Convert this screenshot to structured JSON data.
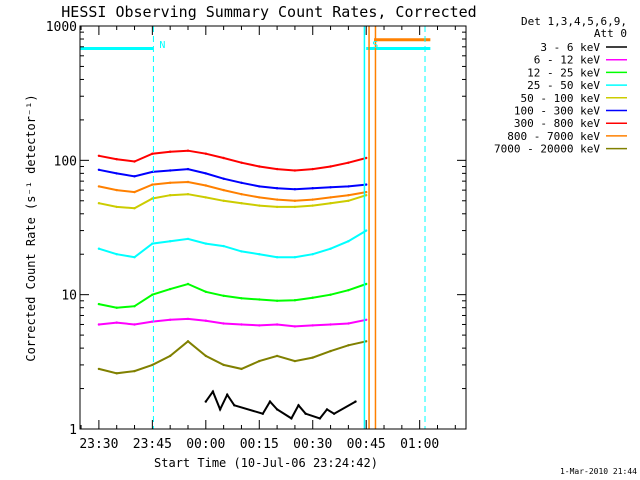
{
  "chart_data": {
    "type": "line",
    "title": "HESSI Observing Summary Count Rates, Corrected",
    "xlabel": "Start Time (10-Jul-06 23:24:42)",
    "ylabel": "Corrected Count Rate (s⁻¹ detector⁻¹)",
    "yscale": "log",
    "ylim": [
      1,
      1000
    ],
    "xlim_minutes": [
      -5.3,
      103.0
    ],
    "y_ticks": [
      {
        "value": 1,
        "label": "1"
      },
      {
        "value": 10,
        "label": "10"
      },
      {
        "value": 100,
        "label": "100"
      },
      {
        "value": 1000,
        "label": "1000"
      }
    ],
    "x_ticks": [
      {
        "value": 0,
        "label": "23:30"
      },
      {
        "value": 15,
        "label": "23:45"
      },
      {
        "value": 30,
        "label": "00:00"
      },
      {
        "value": 45,
        "label": "00:15"
      },
      {
        "value": 60,
        "label": "00:30"
      },
      {
        "value": 75,
        "label": "00:45"
      },
      {
        "value": 90,
        "label": "01:00"
      }
    ],
    "legend_header": [
      "Det 1,3,4,5,6,9,",
      "Att 0"
    ],
    "legend_position": "right",
    "series": [
      {
        "name": "3 - 6 keV",
        "color": "#000000",
        "x": [
          30,
          32,
          34,
          36,
          38,
          46,
          48,
          50,
          54,
          56,
          58,
          62,
          64,
          66,
          72
        ],
        "y": [
          1.6,
          1.9,
          1.4,
          1.8,
          1.5,
          1.3,
          1.6,
          1.4,
          1.2,
          1.5,
          1.3,
          1.2,
          1.4,
          1.3,
          1.6
        ]
      },
      {
        "name": "6 - 12 keV",
        "color": "#ff00ff",
        "x": [
          0,
          5,
          10,
          15,
          20,
          25,
          30,
          35,
          40,
          45,
          50,
          55,
          60,
          65,
          70,
          75
        ],
        "y": [
          6.0,
          6.2,
          6.0,
          6.3,
          6.5,
          6.6,
          6.4,
          6.1,
          6.0,
          5.9,
          6.0,
          5.8,
          5.9,
          6.0,
          6.1,
          6.5
        ]
      },
      {
        "name": "12 - 25 keV",
        "color": "#00ff00",
        "x": [
          0,
          5,
          10,
          15,
          20,
          25,
          30,
          35,
          40,
          45,
          50,
          55,
          60,
          65,
          70,
          75
        ],
        "y": [
          8.5,
          8.0,
          8.2,
          10.0,
          11.0,
          12.0,
          10.5,
          9.8,
          9.4,
          9.2,
          9.0,
          9.1,
          9.5,
          10.0,
          10.8,
          12.0
        ]
      },
      {
        "name": "25 - 50 keV",
        "color": "#00ffff",
        "x": [
          0,
          5,
          10,
          15,
          20,
          25,
          30,
          35,
          40,
          45,
          50,
          55,
          60,
          65,
          70,
          75
        ],
        "y": [
          22,
          20,
          19,
          24,
          25,
          26,
          24,
          23,
          21,
          20,
          19,
          19,
          20,
          22,
          25,
          30
        ]
      },
      {
        "name": "50 - 100 keV",
        "color": "#cccc00",
        "x": [
          0,
          5,
          10,
          15,
          20,
          25,
          30,
          35,
          40,
          45,
          50,
          55,
          60,
          65,
          70,
          75
        ],
        "y": [
          48,
          45,
          44,
          52,
          55,
          56,
          53,
          50,
          48,
          46,
          45,
          45,
          46,
          48,
          50,
          55
        ]
      },
      {
        "name": "100 - 300 keV",
        "color": "#0000ff",
        "x": [
          0,
          5,
          10,
          15,
          20,
          25,
          30,
          35,
          40,
          45,
          50,
          55,
          60,
          65,
          70,
          75
        ],
        "y": [
          85,
          80,
          76,
          82,
          84,
          86,
          80,
          73,
          68,
          64,
          62,
          61,
          62,
          63,
          64,
          66
        ]
      },
      {
        "name": "300 - 800 keV",
        "color": "#ff0000",
        "x": [
          0,
          5,
          10,
          15,
          20,
          25,
          30,
          35,
          40,
          45,
          50,
          55,
          60,
          65,
          70,
          75
        ],
        "y": [
          108,
          102,
          98,
          112,
          116,
          118,
          112,
          104,
          96,
          90,
          86,
          84,
          86,
          90,
          96,
          104
        ]
      },
      {
        "name": "800 - 7000 keV",
        "color": "#ff8000",
        "x": [
          0,
          5,
          10,
          15,
          20,
          25,
          30,
          35,
          40,
          45,
          50,
          55,
          60,
          65,
          70,
          75
        ],
        "y": [
          64,
          60,
          58,
          66,
          68,
          69,
          65,
          60,
          56,
          53,
          51,
          50,
          51,
          53,
          55,
          58
        ]
      },
      {
        "name": "7000 - 20000 keV",
        "color": "#808000",
        "x": [
          0,
          5,
          10,
          15,
          20,
          25,
          30,
          35,
          40,
          45,
          50,
          55,
          60,
          65,
          70,
          75
        ],
        "y": [
          2.8,
          2.6,
          2.7,
          3.0,
          3.5,
          4.5,
          3.5,
          3.0,
          2.8,
          3.2,
          3.5,
          3.2,
          3.4,
          3.8,
          4.2,
          4.5
        ]
      }
    ],
    "markers": [
      {
        "label": "N",
        "x": 15.3,
        "color": "#00ffff"
      },
      {
        "label": "S",
        "x": 75.0,
        "color": "#00ffff"
      }
    ],
    "dashed_lines": [
      {
        "x": 15.3,
        "color": "#00ffff"
      },
      {
        "x": 91.5,
        "color": "#00ffff"
      }
    ],
    "solid_lines": [
      {
        "x": 74.5,
        "color": "#00ffff"
      },
      {
        "x": 75.8,
        "color": "#ff8000"
      },
      {
        "x": 77.6,
        "color": "#ff8000"
      }
    ],
    "bars": [
      {
        "color": "#00ffff",
        "x1": -5.3,
        "x2": 15.3,
        "y": 680
      },
      {
        "color": "#00ffff",
        "x1": 75.0,
        "x2": 93.0,
        "y": 680
      },
      {
        "color": "#ff8000",
        "x1": 77.2,
        "x2": 93.0,
        "y": 790
      }
    ]
  },
  "footer_date": "1-Mar-2010 21:44"
}
